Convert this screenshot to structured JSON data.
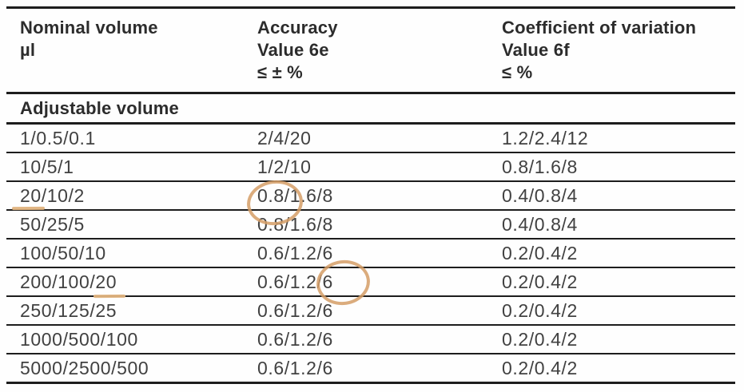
{
  "page": {
    "background_color": "#ffffff",
    "text_color": "#3b3b3b",
    "rule_color": "#1d1d1d",
    "annotation_color": "#d59e66"
  },
  "table": {
    "header": {
      "col1": {
        "line1": "Nominal volume",
        "line2": "µl"
      },
      "col2": {
        "line1": "Accuracy",
        "line2": "Value 6e",
        "line3": "≤ ± %"
      },
      "col3": {
        "line1": "Coefficient of variation",
        "line2": "Value 6f",
        "line3": "≤ %"
      }
    },
    "section_label": "Adjustable volume",
    "rows": [
      {
        "nominal": "1/0.5/0.1",
        "accuracy": "2/4/20",
        "cv": "1.2/2.4/12"
      },
      {
        "nominal": "10/5/1",
        "accuracy": "1/2/10",
        "cv": "0.8/1.6/8"
      },
      {
        "nominal": "20/10/2",
        "accuracy": "0.8/1.6/8",
        "cv": "0.4/0.8/4"
      },
      {
        "nominal": "50/25/5",
        "accuracy": "0.8/1.6/8",
        "cv": "0.4/0.8/4"
      },
      {
        "nominal": "100/50/10",
        "accuracy": "0.6/1.2/6",
        "cv": "0.2/0.4/2"
      },
      {
        "nominal": "200/100/20",
        "accuracy": "0.6/1.2/6",
        "cv": "0.2/0.4/2"
      },
      {
        "nominal": "250/125/25",
        "accuracy": "0.6/1.2/6",
        "cv": "0.2/0.4/2"
      },
      {
        "nominal": "1000/500/100",
        "accuracy": "0.6/1.2/6",
        "cv": "0.2/0.4/2"
      },
      {
        "nominal": "5000/2500/500",
        "accuracy": "0.6/1.2/6",
        "cv": "0.2/0.4/2"
      }
    ]
  },
  "annotations": {
    "color": "#d59e66",
    "items": [
      {
        "type": "circle",
        "marks": "accuracy value 0.8 in row 20/10/2"
      },
      {
        "type": "circle",
        "marks": "accuracy value /6 in row 200/100/20"
      },
      {
        "type": "underline",
        "marks": "nominal volume 20 in row 20/10/2"
      },
      {
        "type": "underline",
        "marks": "nominal volume 20 in row 200/100/20"
      }
    ]
  }
}
